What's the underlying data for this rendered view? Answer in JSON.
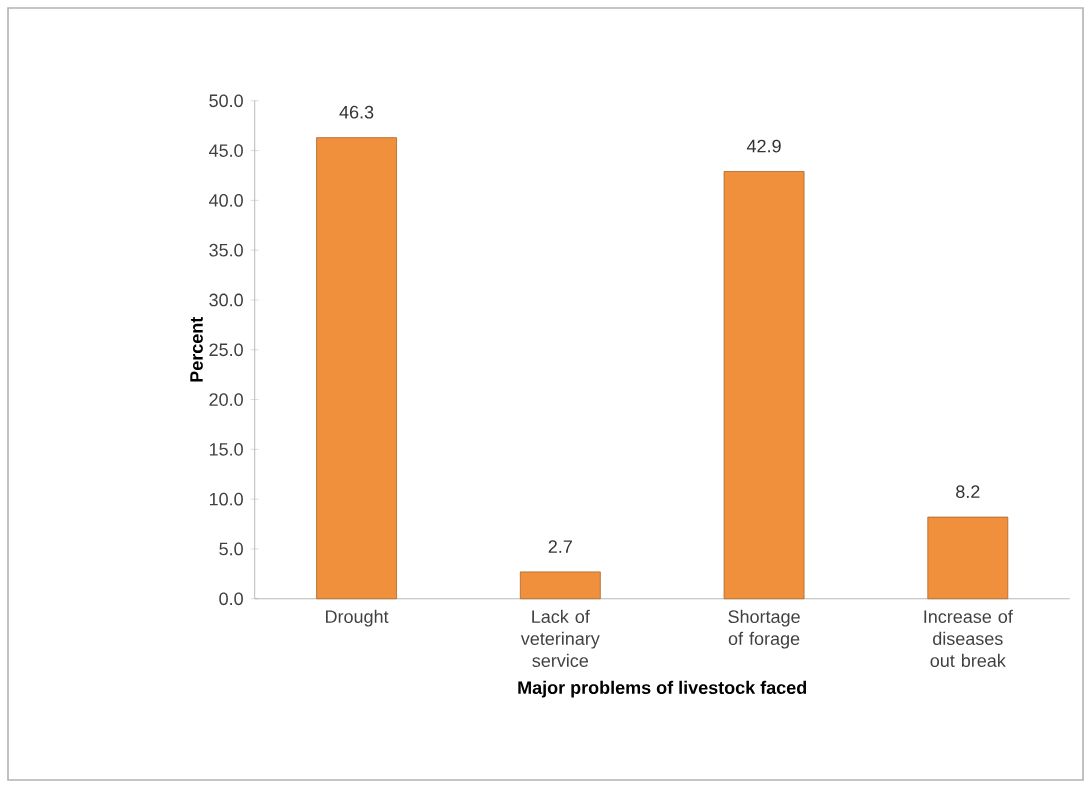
{
  "chart_data": {
    "type": "bar",
    "xlabel": "Major problems of livestock faced",
    "ylabel": "Percent",
    "categories": [
      "Drought",
      "Lack of veterinary service",
      "Shortage of forage",
      "Increase of diseases out break"
    ],
    "values": [
      46.3,
      2.7,
      42.9,
      8.2
    ],
    "color": "#f0903c",
    "ylim": [
      0,
      50
    ],
    "yticks": [
      {
        "value": 0,
        "label": "0.0"
      },
      {
        "value": 5,
        "label": "5.0"
      },
      {
        "value": 10,
        "label": "10.0"
      },
      {
        "value": 15,
        "label": "15.0"
      },
      {
        "value": 20,
        "label": "20.0"
      },
      {
        "value": 25,
        "label": "25.0"
      },
      {
        "value": 30,
        "label": "30.0"
      },
      {
        "value": 35,
        "label": "35.0"
      },
      {
        "value": 40,
        "label": "40.0"
      },
      {
        "value": 45,
        "label": "45.0"
      },
      {
        "value": 50,
        "label": "50.0"
      }
    ],
    "data_labels": true,
    "grid": false
  }
}
